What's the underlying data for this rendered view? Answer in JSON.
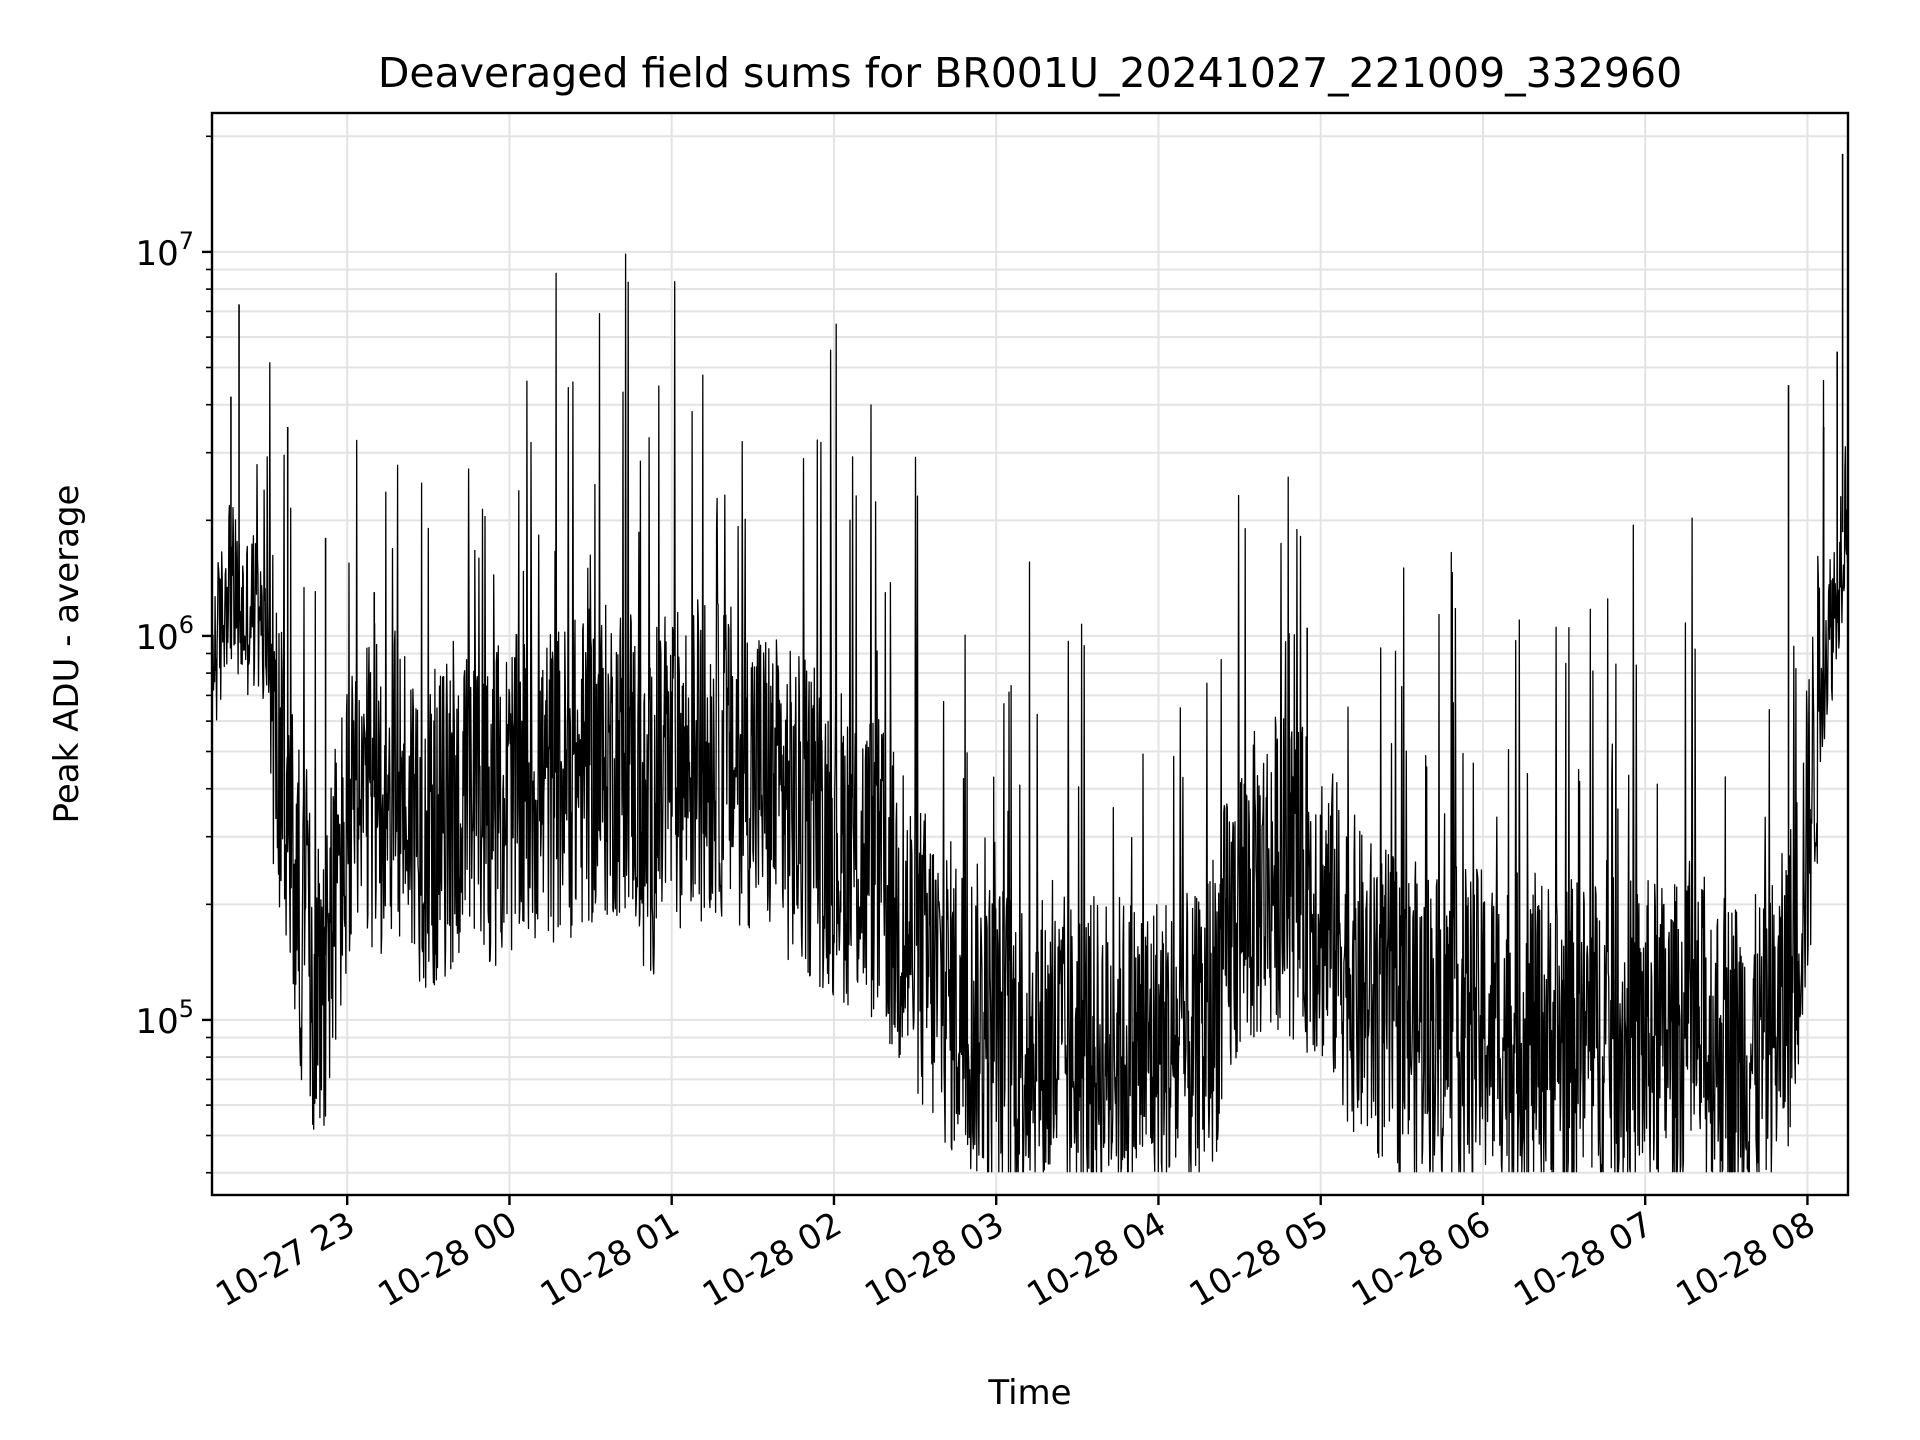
{
  "chart_data": {
    "type": "line",
    "title": "Deaveraged field sums for BR001U_20241027_221009_332960",
    "xlabel": "Time",
    "ylabel": "Peak ADU - average",
    "yscale": "log",
    "ylim": [
      35000,
      23000000
    ],
    "xlim": [
      "2024-10-27 22:10",
      "2024-10-28 08:15"
    ],
    "grid": true,
    "line_color": "#000000",
    "x_ticks": [
      "10-27 23",
      "10-28 00",
      "10-28 01",
      "10-28 02",
      "10-28 03",
      "10-28 04",
      "10-28 05",
      "10-28 06",
      "10-28 07",
      "10-28 08"
    ],
    "y_ticks": [
      {
        "value": 100000,
        "base": "10",
        "exp": "5"
      },
      {
        "value": 1000000,
        "base": "10",
        "exp": "6"
      },
      {
        "value": 10000000,
        "base": "10",
        "exp": "7"
      }
    ],
    "series": [
      {
        "x": [
          "2024-10-27 22:10",
          "2024-10-27 22:13",
          "2024-10-27 22:16",
          "2024-10-27 22:19",
          "2024-10-27 22:22",
          "2024-10-27 22:25",
          "2024-10-27 22:28",
          "2024-10-27 22:31",
          "2024-10-27 22:34",
          "2024-10-27 22:37",
          "2024-10-27 22:40",
          "2024-10-27 22:45",
          "2024-10-27 22:50",
          "2024-10-27 22:55",
          "2024-10-27 23:00",
          "2024-10-27 23:10",
          "2024-10-27 23:20",
          "2024-10-27 23:30",
          "2024-10-27 23:40",
          "2024-10-27 23:50",
          "2024-10-28 00:00",
          "2024-10-28 00:10",
          "2024-10-28 00:20",
          "2024-10-28 00:30",
          "2024-10-28 00:40",
          "2024-10-28 00:45",
          "2024-10-28 00:50",
          "2024-10-28 01:00",
          "2024-10-28 01:15",
          "2024-10-28 01:30",
          "2024-10-28 01:45",
          "2024-10-28 02:00",
          "2024-10-28 02:15",
          "2024-10-28 02:30",
          "2024-10-28 02:45",
          "2024-10-28 03:00",
          "2024-10-28 03:30",
          "2024-10-28 04:00",
          "2024-10-28 04:15",
          "2024-10-28 04:30",
          "2024-10-28 04:45",
          "2024-10-28 05:00",
          "2024-10-28 05:15",
          "2024-10-28 05:30",
          "2024-10-28 06:00",
          "2024-10-28 06:30",
          "2024-10-28 07:00",
          "2024-10-28 07:30",
          "2024-10-28 07:40",
          "2024-10-28 07:45",
          "2024-10-28 07:50",
          "2024-10-28 07:55",
          "2024-10-28 08:00",
          "2024-10-28 08:05",
          "2024-10-28 08:10",
          "2024-10-28 08:15"
        ],
        "y": [
          900000,
          1000000,
          1500000,
          1200000,
          1100000,
          1200000,
          1000000,
          900000,
          500000,
          350000,
          250000,
          150000,
          120000,
          200000,
          300000,
          380000,
          400000,
          300000,
          350000,
          350000,
          380000,
          400000,
          420000,
          450000,
          480000,
          500000,
          300000,
          450000,
          480000,
          450000,
          350000,
          300000,
          250000,
          150000,
          110000,
          90000,
          80000,
          85000,
          80000,
          200000,
          250000,
          200000,
          120000,
          100000,
          95000,
          90000,
          90000,
          85000,
          80000,
          85000,
          100000,
          140000,
          300000,
          800000,
          1200000,
          2500000
        ]
      }
    ],
    "spikes": [
      {
        "x": "2024-10-27 22:20",
        "y": 7300000
      },
      {
        "x": "2024-10-27 22:17",
        "y": 4200000
      },
      {
        "x": "2024-10-27 22:38",
        "y": 3500000
      },
      {
        "x": "2024-10-27 22:52",
        "y": 1800000
      },
      {
        "x": "2024-10-27 23:10",
        "y": 1300000
      },
      {
        "x": "2024-10-28 00:43",
        "y": 2300000
      },
      {
        "x": "2024-10-28 04:55",
        "y": 1050000
      },
      {
        "x": "2024-10-28 07:53",
        "y": 4500000
      },
      {
        "x": "2024-10-28 08:13",
        "y": 18000000
      },
      {
        "x": "2024-10-28 08:11",
        "y": 5500000
      },
      {
        "x": "2024-10-28 08:06",
        "y": 3500000
      }
    ]
  }
}
